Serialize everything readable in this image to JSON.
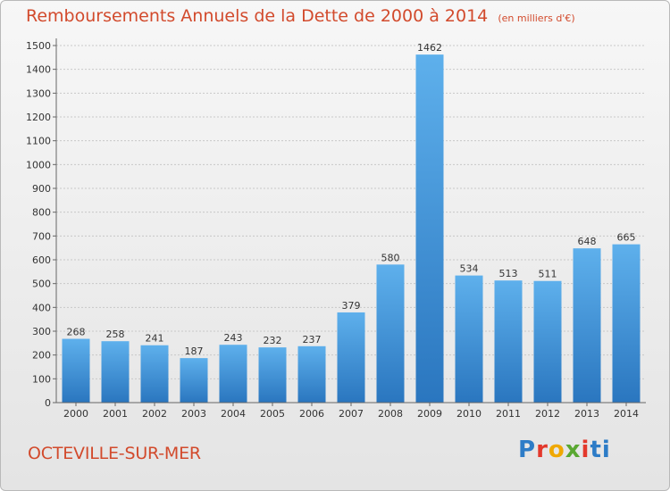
{
  "header": {
    "title": "Remboursements Annuels de la Dette de 2000 à 2014",
    "unit": "(en milliers d'€)"
  },
  "footer": {
    "city": "OCTEVILLE-SUR-MER",
    "logo": "Proxiti"
  },
  "colors": {
    "title": "#d24a2c",
    "bar_top": "#5eb0ec",
    "bar_bottom": "#2a76bf",
    "grid": "#c8c8c8"
  },
  "chart_data": {
    "type": "bar",
    "categories": [
      "2000",
      "2001",
      "2002",
      "2003",
      "2004",
      "2005",
      "2006",
      "2007",
      "2008",
      "2009",
      "2010",
      "2011",
      "2012",
      "2013",
      "2014"
    ],
    "values": [
      268,
      258,
      241,
      187,
      243,
      232,
      237,
      379,
      580,
      1462,
      534,
      513,
      511,
      648,
      665
    ],
    "yticks": [
      0,
      100,
      200,
      300,
      400,
      500,
      600,
      700,
      800,
      900,
      1000,
      1100,
      1200,
      1300,
      1400,
      1500
    ],
    "ylim": [
      0,
      1500
    ],
    "grid": true,
    "xlabel": "",
    "ylabel": ""
  }
}
